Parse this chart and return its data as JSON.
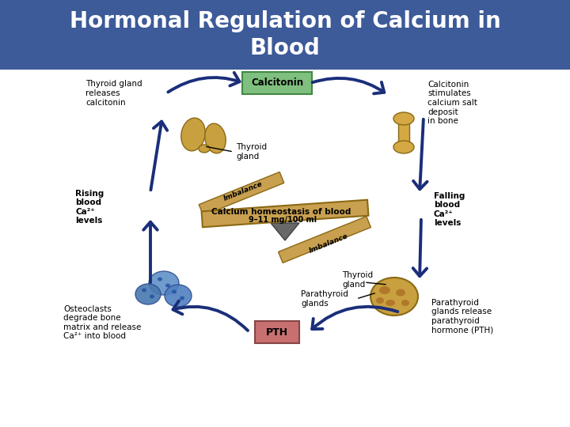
{
  "title": "Hormonal Regulation of Calcium in\nBlood",
  "title_bg": "#3d5a99",
  "title_color": "#ffffff",
  "title_fontsize": 20,
  "bg_color": "#ffffff",
  "calcitonin_box_color": "#7fbf7f",
  "calcitonin_text": "Calcitonin",
  "pth_box_color": "#c87070",
  "pth_text": "PTH",
  "balance_beam_color": "#c8a050",
  "balance_beam_text1": "Calcium homeostasis of blood",
  "balance_beam_text2": "9–11 mg/100 ml",
  "imbalance_color": "#c8a050",
  "arrow_color": "#1a2e7a",
  "text_color": "#000000",
  "label_thyroid_releases": "Thyroid gland\nreleases\ncalcitonin",
  "label_calcitonin_stimulates": "Calcitonin\nstimulates\ncalcium salt\ndeposit\nin bone",
  "label_rising": "Rising\nblood\nCa²⁺\nlevels",
  "label_falling": "Falling\nblood\nCa²⁺\nlevels",
  "label_thyroid_gland_upper": "Thyroid\ngland",
  "label_thyroid_gland_lower": "Thyroid\ngland",
  "label_parathyroid": "Parathyroid\nglands",
  "label_osteoclasts": "Osteoclasts\ndegrade bone\nmatrix and release\nCa²⁺ into blood",
  "label_parathyroid_release": "Parathyroid\nglands release\nparathyroid\nhormone (PTH)",
  "thyroid_color": "#c8a040",
  "bone_color": "#d4a843",
  "osteoclast_color": "#5080c0",
  "parathyroid_color": "#c8a040"
}
